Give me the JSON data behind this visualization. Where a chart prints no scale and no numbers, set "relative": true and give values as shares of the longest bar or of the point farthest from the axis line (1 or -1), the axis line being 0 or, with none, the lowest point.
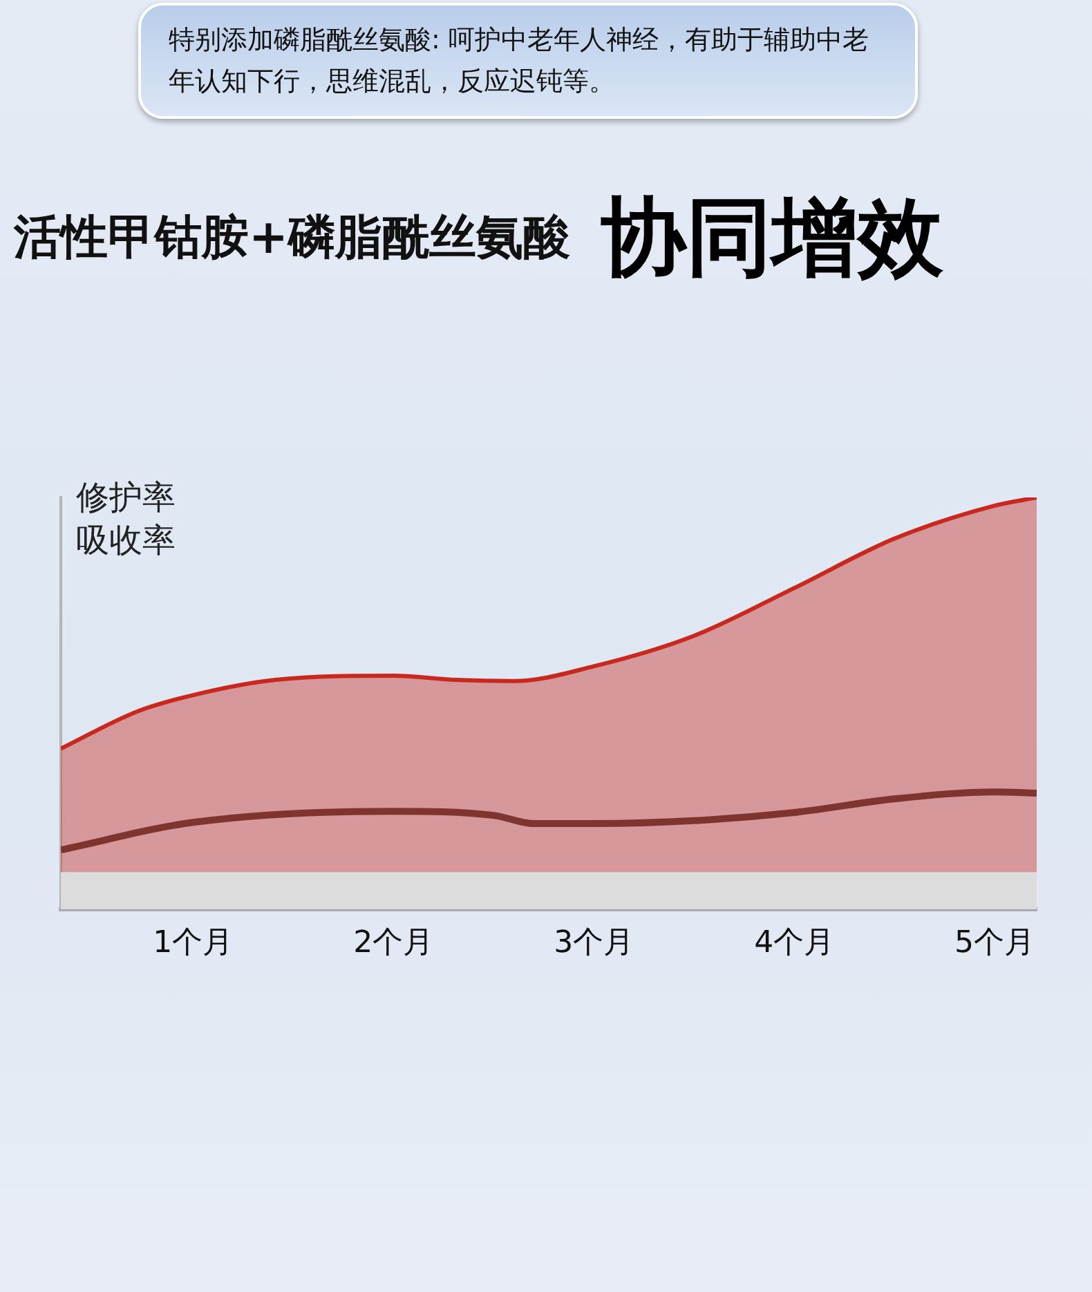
{
  "chart_data": {
    "type": "area",
    "title": "活性甲钴胺+磷脂酰丝氨酸",
    "subtitle": "协同增效",
    "ylabel": "修护率吸收率",
    "annotations": [
      "特别添加磷脂酰丝氨酸: 呵护中老年人神经，有助于辅助中老年认知下行，思维混乱，反应迟钝等。"
    ],
    "relative": true,
    "xlim": [
      0.34,
      5.21
    ],
    "xticks": [
      {
        "value": 1,
        "label": "1个月"
      },
      {
        "value": 2,
        "label": "2个月"
      },
      {
        "value": 3,
        "label": "3个月"
      },
      {
        "value": 4,
        "label": "4个月"
      },
      {
        "value": 5,
        "label": "5个月"
      }
    ],
    "x": [
      0.34,
      0.72,
      1,
      1.41,
      2,
      2.31,
      2.6,
      3,
      3.5,
      4,
      4.5,
      5,
      5.21
    ],
    "series": [
      {
        "color": "#c8281e",
        "values": [
          0.39,
          0.48,
          0.52,
          0.557,
          0.567,
          0.557,
          0.554,
          0.59,
          0.664,
          0.78,
          0.9,
          0.98,
          1.0
        ]
      },
      {
        "type": "line",
        "color": "#4a3f3c",
        "x": [
          0.34,
          1,
          2,
          2.5,
          2.7,
          3,
          3.5,
          4,
          4.5,
          5,
          5.21
        ],
        "values": [
          0.144,
          0.211,
          0.238,
          0.228,
          0.208,
          0.208,
          0.215,
          0.235,
          0.268,
          0.285,
          0.282
        ]
      }
    ],
    "bands": [
      {
        "axis": "y",
        "from": 0,
        "to": 0.09,
        "color": "#dcdcdc"
      }
    ],
    "grid": false,
    "legend": false,
    "marker": "none"
  }
}
